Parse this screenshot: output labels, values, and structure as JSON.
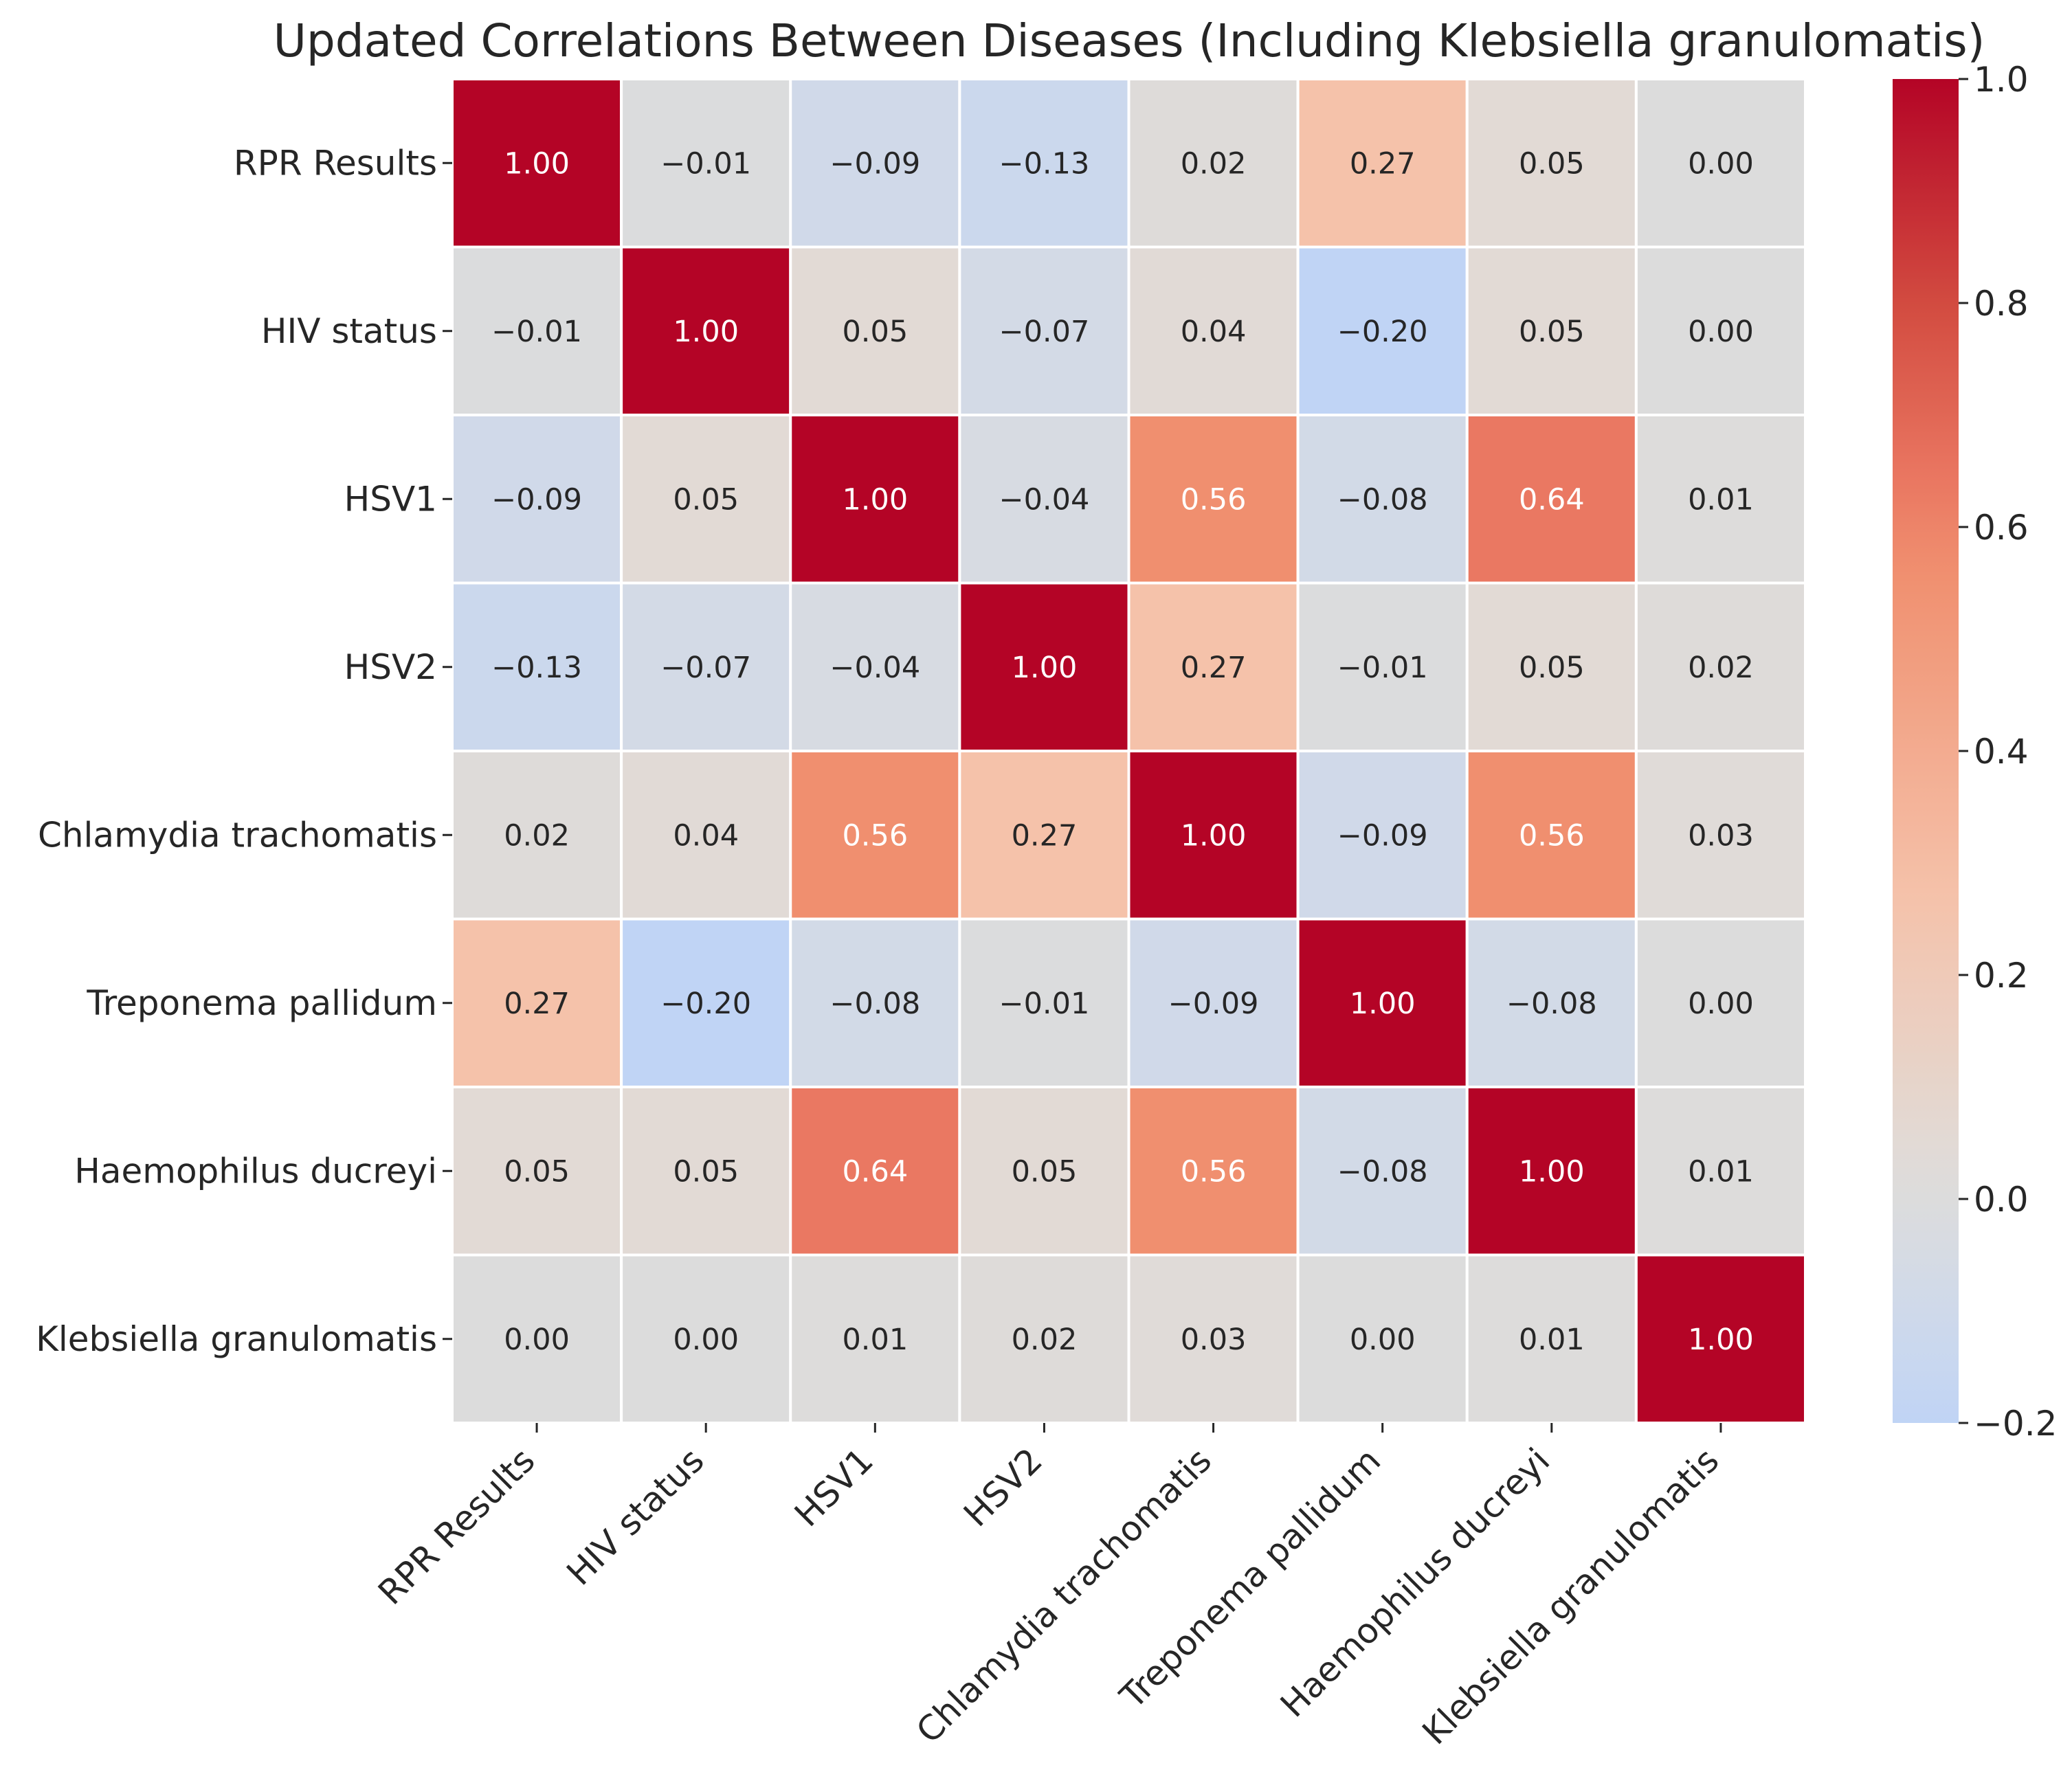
{
  "chart_data": {
    "type": "heatmap",
    "title": "Updated Correlations Between Diseases (Including Klebsiella granulomatis)",
    "xlabel": "",
    "ylabel": "",
    "labels": [
      "RPR Results",
      "HIV status",
      "HSV1",
      "HSV2",
      "Chlamydia trachomatis",
      "Treponema pallidum",
      "Haemophilus ducreyi",
      "Klebsiella granulomatis"
    ],
    "matrix": [
      [
        1.0,
        -0.01,
        -0.09,
        -0.13,
        0.02,
        0.27,
        0.05,
        0.0
      ],
      [
        -0.01,
        1.0,
        0.05,
        -0.07,
        0.04,
        -0.2,
        0.05,
        0.0
      ],
      [
        -0.09,
        0.05,
        1.0,
        -0.04,
        0.56,
        -0.08,
        0.64,
        0.01
      ],
      [
        -0.13,
        -0.07,
        -0.04,
        1.0,
        0.27,
        -0.01,
        0.05,
        0.02
      ],
      [
        0.02,
        0.04,
        0.56,
        0.27,
        1.0,
        -0.09,
        0.56,
        0.03
      ],
      [
        0.27,
        -0.2,
        -0.08,
        -0.01,
        -0.09,
        1.0,
        -0.08,
        0.0
      ],
      [
        0.05,
        0.05,
        0.64,
        0.05,
        0.56,
        -0.08,
        1.0,
        0.01
      ],
      [
        0.0,
        0.0,
        0.01,
        0.02,
        0.03,
        0.0,
        0.01,
        1.0
      ]
    ],
    "colormap": "coolwarm",
    "center": 0,
    "vmin": -0.2,
    "vmax": 1.0,
    "colorbar_ticks": [
      "−0.2",
      "0.0",
      "0.2",
      "0.4",
      "0.6",
      "0.8",
      "1.0"
    ],
    "colorbar_tick_values": [
      -0.2,
      0.0,
      0.2,
      0.4,
      0.6,
      0.8,
      1.0
    ],
    "annotation_format": "0.00",
    "colors": {
      "low": "#c0d4f5",
      "center": "#dcdcdc",
      "high": "#b40426",
      "text_dark": "#262626",
      "text_light": "#ffffff"
    }
  }
}
